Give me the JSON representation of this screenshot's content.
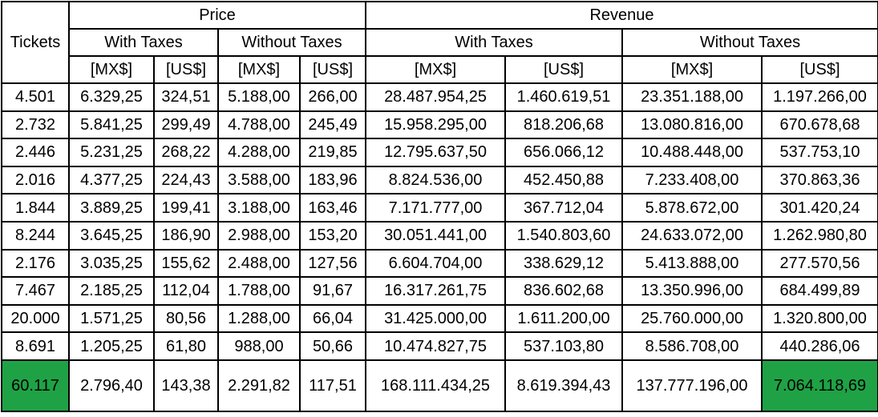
{
  "header": {
    "tickets": "Tickets",
    "price": "Price",
    "revenue": "Revenue",
    "with_taxes": "With Taxes",
    "without_taxes": "Without Taxes",
    "mx": "[MX$]",
    "us": "[US$]"
  },
  "rows": [
    [
      "4.501",
      "6.329,25",
      "324,51",
      "5.188,00",
      "266,00",
      "28.487.954,25",
      "1.460.619,51",
      "23.351.188,00",
      "1.197.266,00"
    ],
    [
      "2.732",
      "5.841,25",
      "299,49",
      "4.788,00",
      "245,49",
      "15.958.295,00",
      "818.206,68",
      "13.080.816,00",
      "670.678,68"
    ],
    [
      "2.446",
      "5.231,25",
      "268,22",
      "4.288,00",
      "219,85",
      "12.795.637,50",
      "656.066,12",
      "10.488.448,00",
      "537.753,10"
    ],
    [
      "2.016",
      "4.377,25",
      "224,43",
      "3.588,00",
      "183,96",
      "8.824.536,00",
      "452.450,88",
      "7.233.408,00",
      "370.863,36"
    ],
    [
      "1.844",
      "3.889,25",
      "199,41",
      "3.188,00",
      "163,46",
      "7.171.777,00",
      "367.712,04",
      "5.878.672,00",
      "301.420,24"
    ],
    [
      "8.244",
      "3.645,25",
      "186,90",
      "2.988,00",
      "153,20",
      "30.051.441,00",
      "1.540.803,60",
      "24.633.072,00",
      "1.262.980,80"
    ],
    [
      "2.176",
      "3.035,25",
      "155,62",
      "2.488,00",
      "127,56",
      "6.604.704,00",
      "338.629,12",
      "5.413.888,00",
      "277.570,56"
    ],
    [
      "7.467",
      "2.185,25",
      "112,04",
      "1.788,00",
      "91,67",
      "16.317.261,75",
      "836.602,68",
      "13.350.996,00",
      "684.499,89"
    ],
    [
      "20.000",
      "1.571,25",
      "80,56",
      "1.288,00",
      "66,04",
      "31.425.000,00",
      "1.611.200,00",
      "25.760.000,00",
      "1.320.800,00"
    ],
    [
      "8.691",
      "1.205,25",
      "61,80",
      "988,00",
      "50,66",
      "10.474.827,75",
      "537.103,80",
      "8.586.708,00",
      "440.286,06"
    ]
  ],
  "totals": [
    "60.117",
    "2.796,40",
    "143,38",
    "2.291,82",
    "117,51",
    "168.111.434,25",
    "8.619.394,43",
    "137.777.196,00",
    "7.064.118,69"
  ],
  "colors": {
    "highlight": "#1fa245"
  }
}
